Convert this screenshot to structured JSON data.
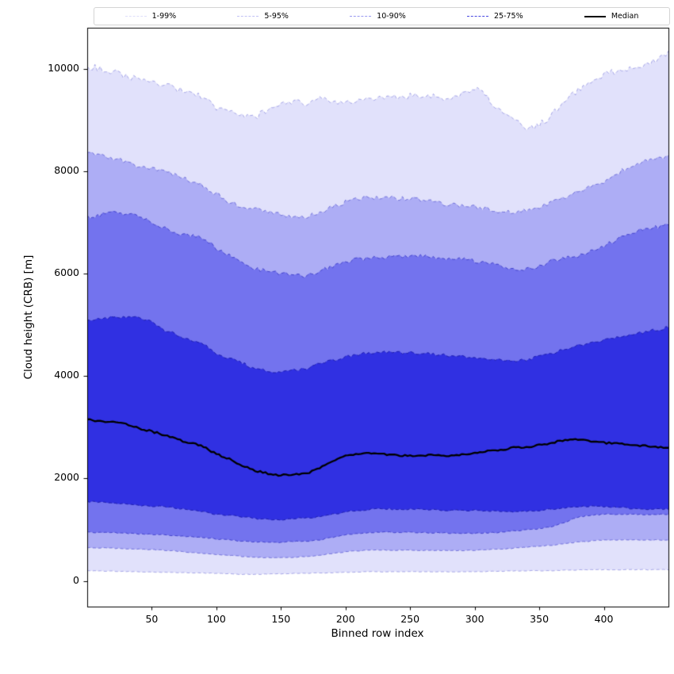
{
  "legend": {
    "entries": [
      {
        "label": "1-99%",
        "color": "#dfdffa",
        "style": "dashed",
        "weight": 1.4
      },
      {
        "label": "5-95%",
        "color": "#c2c2f5",
        "style": "dashed",
        "weight": 1.4
      },
      {
        "label": "10-90%",
        "color": "#9a9af0",
        "style": "dashed",
        "weight": 1.4
      },
      {
        "label": "25-75%",
        "color": "#4848e0",
        "style": "dashed",
        "weight": 1.4
      },
      {
        "label": "Median",
        "color": "#000000",
        "style": "solid",
        "weight": 2.5
      }
    ]
  },
  "axes": {
    "xlabel": "Binned row index",
    "ylabel": "Cloud height (CRB) [m]",
    "xtick_labels": [
      "50",
      "100",
      "150",
      "200",
      "250",
      "300",
      "350",
      "400"
    ],
    "ytick_labels": [
      "0",
      "2000",
      "4000",
      "6000",
      "8000",
      "10000"
    ]
  },
  "chart_data": {
    "type": "area",
    "title": "",
    "xlabel": "Binned row index",
    "ylabel": "Cloud height (CRB) [m]",
    "legend_position": "top",
    "grid": false,
    "xlim": [
      0,
      450
    ],
    "ylim": [
      -500,
      10800
    ],
    "xticks": [
      50,
      100,
      150,
      200,
      250,
      300,
      350,
      400
    ],
    "yticks": [
      0,
      2000,
      4000,
      6000,
      8000,
      10000
    ],
    "x": [
      0,
      10,
      20,
      30,
      40,
      50,
      60,
      70,
      80,
      90,
      100,
      110,
      120,
      130,
      140,
      150,
      160,
      170,
      180,
      190,
      200,
      210,
      220,
      230,
      240,
      250,
      260,
      270,
      280,
      290,
      300,
      310,
      320,
      330,
      340,
      350,
      360,
      370,
      380,
      390,
      400,
      410,
      420,
      430,
      440,
      450
    ],
    "bands": [
      {
        "name": "1-99%",
        "lower": [
          200,
          195,
          190,
          185,
          180,
          175,
          170,
          165,
          160,
          155,
          150,
          140,
          130,
          130,
          135,
          140,
          145,
          150,
          155,
          160,
          170,
          175,
          180,
          180,
          180,
          180,
          180,
          180,
          180,
          180,
          180,
          185,
          190,
          195,
          200,
          200,
          200,
          210,
          215,
          220,
          220,
          220,
          220,
          220,
          220,
          220
        ],
        "upper": [
          10050,
          10000,
          9950,
          9850,
          9800,
          9750,
          9700,
          9600,
          9550,
          9450,
          9250,
          9150,
          9100,
          9050,
          9200,
          9300,
          9350,
          9300,
          9400,
          9350,
          9350,
          9400,
          9380,
          9420,
          9450,
          9480,
          9500,
          9450,
          9400,
          9500,
          9650,
          9450,
          9150,
          9000,
          8800,
          8900,
          9100,
          9350,
          9600,
          9750,
          9900,
          9950,
          10000,
          10050,
          10150,
          10350
        ],
        "fill": "rgba(90,90,235,0.18)",
        "edge": "rgba(60,60,200,0.40)",
        "jitter_lower": 6,
        "jitter_upper": 65
      },
      {
        "name": "5-95%",
        "lower": [
          650,
          645,
          640,
          630,
          620,
          610,
          600,
          580,
          560,
          540,
          520,
          500,
          480,
          460,
          455,
          450,
          460,
          480,
          500,
          540,
          570,
          590,
          600,
          605,
          600,
          600,
          600,
          595,
          590,
          590,
          600,
          610,
          620,
          640,
          660,
          680,
          700,
          730,
          760,
          780,
          800,
          800,
          800,
          800,
          800,
          800
        ],
        "upper": [
          8350,
          8300,
          8250,
          8200,
          8100,
          8050,
          8000,
          7900,
          7800,
          7700,
          7550,
          7400,
          7300,
          7250,
          7200,
          7150,
          7120,
          7100,
          7200,
          7300,
          7400,
          7450,
          7480,
          7500,
          7470,
          7460,
          7450,
          7400,
          7350,
          7320,
          7300,
          7250,
          7220,
          7200,
          7230,
          7280,
          7400,
          7500,
          7600,
          7700,
          7800,
          7950,
          8100,
          8200,
          8250,
          8300
        ],
        "fill": "rgba(80,80,235,0.36)",
        "edge": "rgba(50,50,195,0.55)",
        "jitter_lower": 8,
        "jitter_upper": 45
      },
      {
        "name": "10-90%",
        "lower": [
          950,
          945,
          940,
          930,
          920,
          910,
          900,
          880,
          865,
          850,
          820,
          800,
          780,
          760,
          755,
          750,
          770,
          780,
          800,
          850,
          900,
          930,
          950,
          955,
          950,
          950,
          945,
          940,
          935,
          930,
          930,
          940,
          950,
          980,
          1000,
          1020,
          1060,
          1150,
          1250,
          1280,
          1300,
          1300,
          1300,
          1300,
          1300,
          1300
        ],
        "upper": [
          7100,
          7150,
          7200,
          7180,
          7100,
          7000,
          6900,
          6800,
          6750,
          6700,
          6500,
          6350,
          6200,
          6100,
          6050,
          6000,
          5980,
          5950,
          6050,
          6150,
          6250,
          6280,
          6300,
          6320,
          6330,
          6350,
          6340,
          6320,
          6300,
          6280,
          6250,
          6200,
          6150,
          6100,
          6080,
          6150,
          6250,
          6300,
          6350,
          6450,
          6550,
          6650,
          6800,
          6850,
          6900,
          6950
        ],
        "fill": "rgba(70,70,232,0.56)",
        "edge": "rgba(40,40,190,0.72)",
        "jitter_lower": 10,
        "jitter_upper": 40
      },
      {
        "name": "25-75%",
        "lower": [
          1550,
          1540,
          1520,
          1500,
          1480,
          1460,
          1450,
          1420,
          1380,
          1350,
          1300,
          1280,
          1250,
          1220,
          1200,
          1200,
          1220,
          1230,
          1250,
          1300,
          1350,
          1380,
          1400,
          1410,
          1400,
          1400,
          1400,
          1390,
          1380,
          1380,
          1380,
          1370,
          1360,
          1350,
          1360,
          1380,
          1400,
          1420,
          1450,
          1460,
          1450,
          1440,
          1420,
          1410,
          1400,
          1400
        ],
        "upper": [
          5100,
          5120,
          5150,
          5130,
          5160,
          5050,
          4900,
          4800,
          4700,
          4620,
          4450,
          4350,
          4250,
          4150,
          4100,
          4080,
          4120,
          4150,
          4250,
          4300,
          4380,
          4420,
          4450,
          4470,
          4450,
          4460,
          4440,
          4420,
          4400,
          4380,
          4350,
          4330,
          4310,
          4300,
          4320,
          4380,
          4450,
          4520,
          4600,
          4650,
          4700,
          4750,
          4800,
          4850,
          4900,
          4950
        ],
        "fill": "rgba(42,42,225,0.92)",
        "edge": "rgba(25,25,170,0.90)",
        "jitter_lower": 14,
        "jitter_upper": 30
      }
    ],
    "median": {
      "name": "Median",
      "color": "#000000",
      "width": 2.3,
      "jitter": 18,
      "values": [
        3150,
        3120,
        3100,
        3060,
        2980,
        2920,
        2850,
        2760,
        2700,
        2620,
        2480,
        2380,
        2250,
        2150,
        2100,
        2060,
        2080,
        2100,
        2200,
        2350,
        2450,
        2480,
        2500,
        2470,
        2460,
        2440,
        2450,
        2470,
        2440,
        2460,
        2500,
        2530,
        2560,
        2600,
        2620,
        2650,
        2700,
        2750,
        2760,
        2730,
        2700,
        2680,
        2660,
        2640,
        2620,
        2600
      ]
    }
  }
}
